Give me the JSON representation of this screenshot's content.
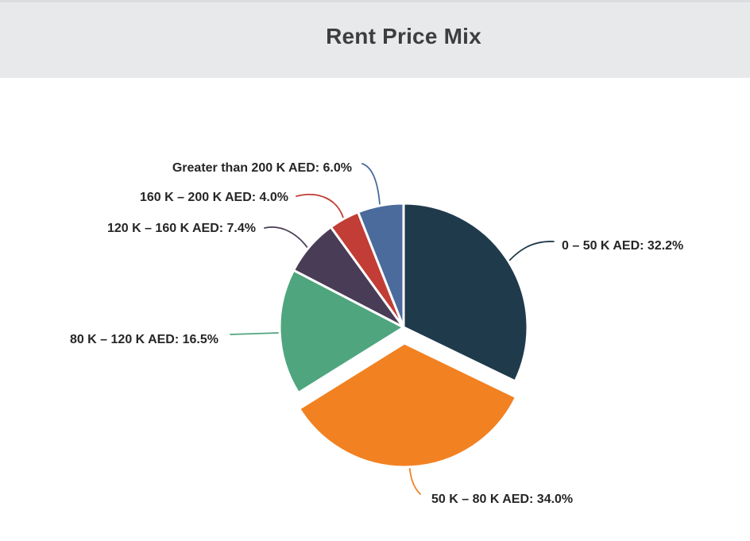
{
  "header": {
    "title": "Rent Price Mix"
  },
  "chart_data": {
    "type": "pie",
    "title": "Rent Price Mix",
    "unit": "%",
    "start_angle_deg": 0,
    "direction": "clockwise",
    "legend": "none",
    "label_style": "callout-lines",
    "slices": [
      {
        "name": "0 – 50 K AED",
        "value": 32.2,
        "display": "0 – 50 K AED: 32.2%",
        "color": "#1f3a4b",
        "exploded": false
      },
      {
        "name": "50 K – 80 K AED",
        "value": 34.0,
        "display": "50 K – 80 K AED: 34.0%",
        "color": "#f28122",
        "exploded": true
      },
      {
        "name": "80 K – 120 K AED",
        "value": 16.5,
        "display": "80 K – 120 K AED: 16.5%",
        "color": "#4fa57e",
        "exploded": false
      },
      {
        "name": "120 K – 160 K AED",
        "value": 7.4,
        "display": "120 K – 160 K AED: 7.4%",
        "color": "#493c56",
        "exploded": false
      },
      {
        "name": "160 K – 200 K AED",
        "value": 4.0,
        "display": "160 K – 200 K AED: 4.0%",
        "color": "#c13d35",
        "exploded": false
      },
      {
        "name": "Greater than 200 K AED",
        "value": 6.0,
        "display": "Greater than 200 K AED: 6.0%",
        "color": "#4a6b9b",
        "exploded": false
      }
    ]
  }
}
